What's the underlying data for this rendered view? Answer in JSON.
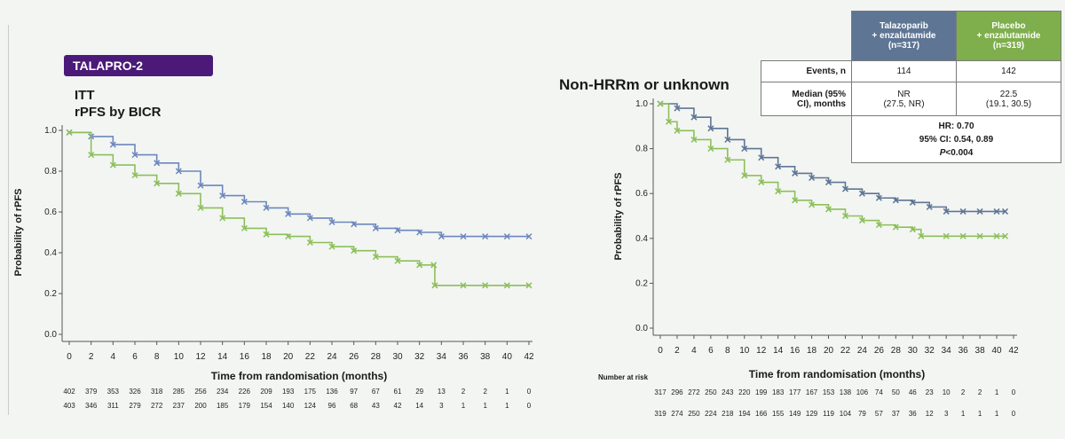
{
  "badge": "TALAPRO-2",
  "left_title_line1": "ITT",
  "left_title_line2": "rPFS by BICR",
  "right_title": "Non-HRRm or unknown",
  "risk_label": "Number at risk",
  "table": {
    "col1": [
      "Talazoparib",
      "+ enzalutamide",
      "(n=317)"
    ],
    "col2": [
      "Placebo",
      "+ enzalutamide",
      "(n=319)"
    ],
    "events_label": "Events, n",
    "events": [
      "114",
      "142"
    ],
    "median_label": [
      "Median (95%",
      "CI), months"
    ],
    "median_t": [
      "NR",
      "(27.5, NR)"
    ],
    "median_p": [
      "22.5",
      "(19.1, 30.5)"
    ],
    "hr": "HR: 0.70",
    "ci": "95% CI: 0.54, 0.89",
    "p": "<0.004"
  },
  "colors": {
    "talazoparib": "#6c87bd",
    "placebo": "#8cbf5a",
    "step_gray": "#9aa0a8"
  },
  "chart_data": [
    {
      "type": "line",
      "xlabel": "Time from randomisation (months)",
      "ylabel": "Probability of rPFS",
      "xlim": [
        0,
        42
      ],
      "ylim": [
        0,
        1.0
      ],
      "xticks": [
        "0",
        "2",
        "4",
        "6",
        "8",
        "10",
        "12",
        "14",
        "16",
        "18",
        "20",
        "22",
        "24",
        "26",
        "28",
        "30",
        "32",
        "34",
        "36",
        "38",
        "40",
        "42"
      ],
      "yticks": [
        "0.0",
        "0.2",
        "0.4",
        "0.6",
        "0.8",
        "1.0"
      ],
      "series": [
        {
          "color": "#6c87bd",
          "x": [
            0,
            2,
            4,
            6,
            8,
            10,
            12,
            14,
            16,
            18,
            20,
            22,
            24,
            26,
            28,
            30,
            32,
            34,
            36,
            38,
            40,
            42
          ],
          "values": [
            0.99,
            0.97,
            0.93,
            0.88,
            0.84,
            0.8,
            0.73,
            0.68,
            0.65,
            0.62,
            0.59,
            0.57,
            0.55,
            0.54,
            0.52,
            0.51,
            0.5,
            0.48,
            0.48,
            0.48,
            0.48,
            0.48
          ]
        },
        {
          "color": "#8cbf5a",
          "x": [
            0,
            2,
            4,
            6,
            8,
            10,
            12,
            14,
            16,
            18,
            20,
            22,
            24,
            26,
            28,
            30,
            32,
            33.3,
            33.4,
            36,
            38,
            40,
            42
          ],
          "values": [
            0.99,
            0.88,
            0.83,
            0.78,
            0.74,
            0.69,
            0.62,
            0.57,
            0.52,
            0.49,
            0.48,
            0.45,
            0.43,
            0.41,
            0.38,
            0.36,
            0.34,
            0.34,
            0.24,
            0.24,
            0.24,
            0.24,
            0.24
          ]
        }
      ],
      "risk_rows": [
        [
          "402",
          "379",
          "353",
          "326",
          "318",
          "285",
          "256",
          "234",
          "226",
          "209",
          "193",
          "175",
          "136",
          "97",
          "67",
          "61",
          "29",
          "13",
          "2",
          "2",
          "1",
          "0"
        ],
        [
          "403",
          "346",
          "311",
          "279",
          "272",
          "237",
          "200",
          "185",
          "179",
          "154",
          "140",
          "124",
          "96",
          "68",
          "43",
          "42",
          "14",
          "3",
          "1",
          "1",
          "1",
          "0"
        ]
      ]
    },
    {
      "type": "line",
      "xlabel": "Time from randomisation (months)",
      "ylabel": "Probability of rPFS",
      "xlim": [
        0,
        42
      ],
      "ylim": [
        0,
        1.0
      ],
      "xticks": [
        "0",
        "2",
        "4",
        "6",
        "8",
        "10",
        "12",
        "14",
        "16",
        "18",
        "20",
        "22",
        "24",
        "26",
        "28",
        "30",
        "32",
        "34",
        "36",
        "38",
        "40",
        "42"
      ],
      "yticks": [
        "0.0",
        "0.2",
        "0.4",
        "0.6",
        "0.8",
        "1.0"
      ],
      "series": [
        {
          "color": "#5e7594",
          "x": [
            0,
            2,
            4,
            6,
            8,
            10,
            12,
            14,
            16,
            18,
            20,
            22,
            24,
            26,
            28,
            30,
            32,
            34,
            36,
            38,
            40,
            41
          ],
          "values": [
            1.0,
            0.98,
            0.94,
            0.89,
            0.84,
            0.8,
            0.76,
            0.72,
            0.69,
            0.67,
            0.65,
            0.62,
            0.6,
            0.58,
            0.57,
            0.56,
            0.54,
            0.52,
            0.52,
            0.52,
            0.52,
            0.52
          ]
        },
        {
          "color": "#8cbf5a",
          "x": [
            0,
            1,
            2,
            4,
            6,
            8,
            10,
            12,
            14,
            16,
            18,
            20,
            22,
            24,
            26,
            28,
            30,
            31,
            34,
            36,
            38,
            40,
            41
          ],
          "values": [
            1.0,
            0.92,
            0.88,
            0.84,
            0.8,
            0.75,
            0.68,
            0.65,
            0.61,
            0.57,
            0.55,
            0.53,
            0.5,
            0.48,
            0.46,
            0.45,
            0.44,
            0.41,
            0.41,
            0.41,
            0.41,
            0.41,
            0.41
          ]
        }
      ],
      "risk_rows": [
        [
          "317",
          "296",
          "272",
          "250",
          "243",
          "220",
          "199",
          "183",
          "177",
          "167",
          "153",
          "138",
          "106",
          "74",
          "50",
          "46",
          "23",
          "10",
          "2",
          "2",
          "1",
          "0"
        ],
        [
          "319",
          "274",
          "250",
          "224",
          "218",
          "194",
          "166",
          "155",
          "149",
          "129",
          "119",
          "104",
          "79",
          "57",
          "37",
          "36",
          "12",
          "3",
          "1",
          "1",
          "1",
          "0"
        ]
      ]
    }
  ]
}
